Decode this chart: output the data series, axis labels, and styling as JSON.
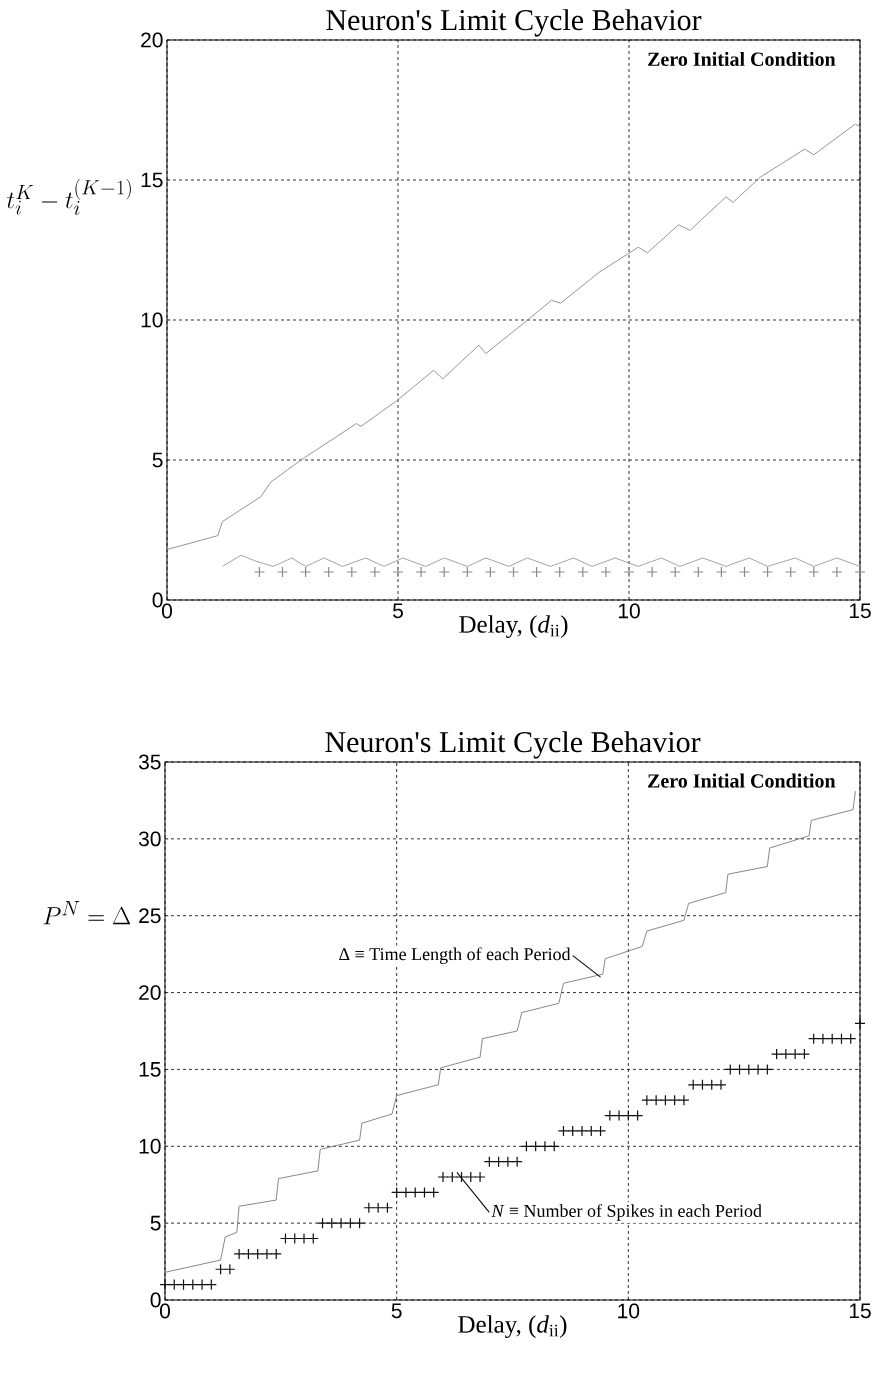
{
  "chart_data": [
    {
      "type": "line",
      "title": "Neuron's Limit Cycle Behavior",
      "xlabel": "Delay, (*d*$_{ii}$)",
      "ylabel": "t_i^K - t_i^{(K-1)}",
      "annotations": [
        "Zero Initial Condition"
      ],
      "xlim": [
        0,
        15
      ],
      "xticks": [
        0,
        5,
        10,
        15
      ],
      "ylim": [
        0,
        20
      ],
      "yticks": [
        0,
        5,
        10,
        15,
        20
      ],
      "grid": true,
      "series": [
        {
          "type": "line",
          "color": "#8a8a8a",
          "x": [
            0,
            1.1,
            1.2,
            2.04,
            2.24,
            2.9,
            3.27,
            4.1,
            4.2,
            4.96,
            5.77,
            5.97,
            6.75,
            6.9,
            7.73,
            8.32,
            8.52,
            9.35,
            10.2,
            10.4,
            11.07,
            11.32,
            12.1,
            12.25,
            12.84,
            13.8,
            14.0,
            14.9,
            15
          ],
          "values": [
            1.8,
            2.3,
            2.8,
            3.7,
            4.2,
            5.0,
            5.4,
            6.3,
            6.2,
            7.1,
            8.2,
            7.9,
            9.1,
            8.8,
            9.9,
            10.7,
            10.6,
            11.7,
            12.6,
            12.4,
            13.4,
            13.2,
            14.4,
            14.2,
            15.1,
            16.1,
            15.9,
            17.0,
            16.9
          ]
        },
        {
          "type": "line",
          "color": "#9a9a9a",
          "x": [
            1.2,
            1.6,
            1.9,
            2.3,
            2.7,
            3.0,
            3.4,
            3.8,
            4.3,
            4.7,
            5.1,
            5.6,
            6.0,
            6.5,
            6.9,
            7.4,
            7.8,
            8.3,
            8.8,
            9.2,
            9.7,
            10.2,
            10.7,
            11.1,
            11.6,
            12.1,
            12.6,
            13.0,
            13.6,
            14.0,
            14.5,
            15
          ],
          "values": [
            1.2,
            1.6,
            1.4,
            1.2,
            1.5,
            1.2,
            1.5,
            1.2,
            1.5,
            1.2,
            1.5,
            1.2,
            1.5,
            1.2,
            1.5,
            1.2,
            1.5,
            1.2,
            1.5,
            1.2,
            1.5,
            1.2,
            1.5,
            1.2,
            1.5,
            1.2,
            1.5,
            1.2,
            1.5,
            1.2,
            1.5,
            1.2
          ]
        },
        {
          "type": "scatter",
          "marker": "cross",
          "color": "#8a8a8a",
          "x": [
            2.0,
            2.5,
            3.0,
            3.5,
            4.0,
            4.5,
            5.0,
            5.5,
            6.0,
            6.5,
            7.0,
            7.5,
            8.0,
            8.5,
            9.0,
            9.5,
            10.0,
            10.5,
            11.0,
            11.5,
            12.0,
            12.5,
            13.0,
            13.5,
            14.0,
            14.5,
            15.0
          ],
          "values": [
            1.0,
            1.0,
            1.0,
            1.0,
            1.0,
            1.0,
            1.0,
            1.0,
            1.0,
            1.0,
            1.0,
            1.0,
            1.0,
            1.0,
            1.0,
            1.0,
            1.0,
            1.0,
            1.0,
            1.0,
            1.0,
            1.0,
            1.0,
            1.0,
            1.0,
            1.0,
            1.0
          ]
        }
      ]
    },
    {
      "type": "line",
      "title": "Neuron's Limit Cycle Behavior",
      "xlabel": "Delay, (*d*$_{ii}$)",
      "ylabel": "P^N = \\Delta",
      "annotations": [
        "Zero Initial Condition",
        {
          "text": "Δ ≡ Time Length of each Period",
          "x": 9.4,
          "y": 21.0
        },
        {
          "text": "*N* ≡ Number of Spikes in each Period",
          "x": 6.3,
          "y": 8.3
        }
      ],
      "xlim": [
        0,
        15
      ],
      "xticks": [
        0,
        5,
        10,
        15
      ],
      "ylim": [
        0,
        35
      ],
      "yticks": [
        0,
        5,
        10,
        15,
        20,
        25,
        30,
        35
      ],
      "grid": true,
      "series": [
        {
          "type": "line",
          "color": "#7a7a7a",
          "x": [
            0,
            1.2,
            1.3,
            1.55,
            1.6,
            2.4,
            2.45,
            3.3,
            3.35,
            4.2,
            4.25,
            4.9,
            5.0,
            5.9,
            5.95,
            6.8,
            6.85,
            7.6,
            7.7,
            8.5,
            8.6,
            9.45,
            9.5,
            10.3,
            10.4,
            11.2,
            11.3,
            12.1,
            12.15,
            13.0,
            13.05,
            13.9,
            13.95,
            14.85,
            14.9
          ],
          "values": [
            1.8,
            2.6,
            4.1,
            4.4,
            6.1,
            6.5,
            7.9,
            8.4,
            9.8,
            10.4,
            11.5,
            12.1,
            13.3,
            14.0,
            15.1,
            15.8,
            17.0,
            17.5,
            18.7,
            19.3,
            20.6,
            21.2,
            22.2,
            23.0,
            24.0,
            24.7,
            25.8,
            26.5,
            27.7,
            28.2,
            29.4,
            30.2,
            31.2,
            31.9,
            33.1
          ]
        },
        {
          "type": "scatter",
          "marker": "cross",
          "color": "#111111",
          "x": [
            0,
            0.2,
            0.4,
            0.6,
            0.8,
            1.0,
            1.2,
            1.4,
            1.6,
            1.8,
            2.0,
            2.2,
            2.4,
            2.6,
            2.8,
            3.0,
            3.2,
            3.4,
            3.6,
            3.8,
            4.0,
            4.2,
            4.4,
            4.6,
            4.8,
            5.0,
            5.2,
            5.4,
            5.6,
            5.8,
            6.0,
            6.2,
            6.4,
            6.6,
            6.8,
            7.0,
            7.2,
            7.4,
            7.6,
            7.8,
            8.0,
            8.2,
            8.4,
            8.6,
            8.8,
            9.0,
            9.2,
            9.4,
            9.6,
            9.8,
            10.0,
            10.2,
            10.4,
            10.6,
            10.8,
            11.0,
            11.2,
            11.4,
            11.6,
            11.8,
            12.0,
            12.2,
            12.4,
            12.6,
            12.8,
            13.0,
            13.2,
            13.4,
            13.6,
            13.8,
            14.0,
            14.2,
            14.4,
            14.6,
            14.8,
            15.0
          ],
          "values": [
            1,
            1,
            1,
            1,
            1,
            1,
            2,
            2,
            3,
            3,
            3,
            3,
            3,
            4,
            4,
            4,
            4,
            5,
            5,
            5,
            5,
            5,
            6,
            6,
            6,
            7,
            7,
            7,
            7,
            7,
            8,
            8,
            8,
            8,
            8,
            9,
            9,
            9,
            9,
            10,
            10,
            10,
            10,
            11,
            11,
            11,
            11,
            11,
            12,
            12,
            12,
            12,
            13,
            13,
            13,
            13,
            13,
            14,
            14,
            14,
            14,
            15,
            15,
            15,
            15,
            15,
            16,
            16,
            16,
            16,
            17,
            17,
            17,
            17,
            17,
            18
          ]
        }
      ]
    }
  ]
}
